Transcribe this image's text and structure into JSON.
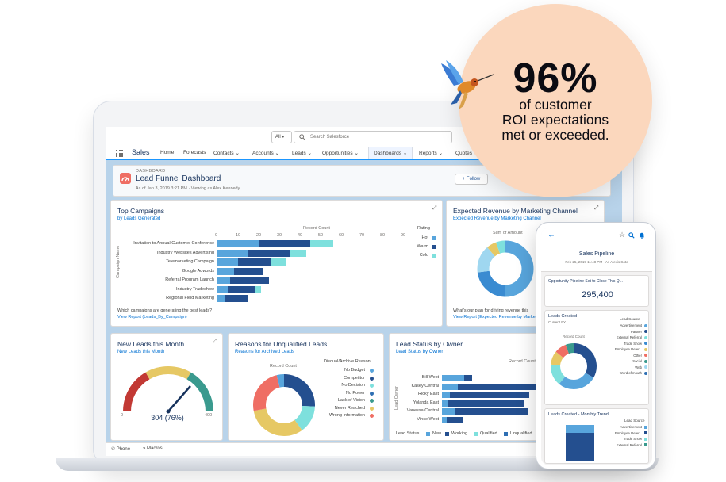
{
  "colors": {
    "cold": "#7ee0dd",
    "warm": "#244f8f",
    "hot": "#58a5dc",
    "accent": "#0070d2",
    "new": "#58a5dc",
    "working": "#244f8f",
    "qualified": "#7ee0dd",
    "unqualified": "#2f6fb3",
    "gaugeRed": "#c23934",
    "gaugeYellow": "#e6c864",
    "gaugeTeal": "#3a9a8e"
  },
  "topbar": {
    "scope": "All",
    "search_placeholder": "Search Salesforce"
  },
  "nav": {
    "app": "Sales",
    "items": [
      "Home",
      "Forecasts",
      "Contacts",
      "Accounts",
      "Leads",
      "Opportunities",
      "Dashboards",
      "Reports",
      "Quotes"
    ],
    "active": "Dashboards"
  },
  "header": {
    "crumb": "DASHBOARD",
    "title": "Lead Funnel Dashboard",
    "subtitle": "As of Jan 3, 2019 3:21 PM · Viewing as Alex Kennedy",
    "follow": "+ Follow"
  },
  "campaigns": {
    "title": "Top Campaigns",
    "subtitle": "by Leads Generated",
    "axis_title": "Record Count",
    "y_axis": "Campaign Name",
    "legend_title": "Rating",
    "legend": [
      "Hot",
      "Warm",
      "Cold"
    ],
    "ticks": [
      "0",
      "10",
      "20",
      "30",
      "40",
      "50",
      "60",
      "70",
      "80",
      "90"
    ],
    "footer_q": "Which campaigns are generating the best leads?",
    "footer_link": "View Report (Leads_By_Campaign)"
  },
  "revenue": {
    "title": "Expected Revenue by Marketing Channel",
    "subtitle": "Expected Revenue by Marketing Channel",
    "center": "Sum of Amount",
    "footer_q": "What's our plan for driving revenue this",
    "footer_link": "View Report (Expected Revenue by Marke"
  },
  "newleads": {
    "title": "New Leads this Month",
    "subtitle": "New Leads this Month",
    "value": "304 (76%)",
    "min": "0",
    "max": "400"
  },
  "reasons": {
    "title": "Reasons for Unqualified Leads",
    "subtitle": "Reasons for Archived Leads",
    "center": "Record Count",
    "legend_title": "Disqual/Archive Reason",
    "legend": [
      "No Budget",
      "Competitor",
      "No Decision",
      "No Power",
      "Lack of Vision",
      "Never Reached",
      "Wrong Information"
    ]
  },
  "status": {
    "title": "Lead Status by Owner",
    "subtitle": "Lead Status by Owner",
    "axis_title": "Record Count",
    "y_axis": "Lead Owner",
    "owners": [
      "Bill West",
      "Kasey Central",
      "Ricky East",
      "Yolanda East",
      "Vanessa Central",
      "Vince West"
    ],
    "legend_title": "Lead Status",
    "legend": [
      "New",
      "Working",
      "Qualified",
      "Unqualified"
    ]
  },
  "utility": {
    "phone": "Phone",
    "macros": "Macros"
  },
  "badge": {
    "percent": "96%",
    "line1": "of customer",
    "line2": "ROI expectations",
    "line3": "met or exceeded."
  },
  "phone": {
    "title": "Sales Pipeline",
    "meta": "Feb 25, 2019 11:48 PM · As Alexis Soto",
    "pipeline_title": "Opportunity Pipeline Set to Close This Q...",
    "pipeline_value": "295,400",
    "leads_title": "Leads Created",
    "leads_sub": "Current FY",
    "leads_center": "Record Count",
    "source_title": "Lead Source",
    "sources": [
      "Advertisement",
      "Partner",
      "External Referral",
      "Trade Show",
      "Employee Refer...",
      "Other",
      "Social",
      "Web",
      "Word of mouth"
    ],
    "monthly_title": "Leads Created - Monthly Trend",
    "monthly_sources": [
      "Advertisement",
      "Employee Refer...",
      "Trade Show",
      "External Referral"
    ]
  },
  "chart_data": [
    {
      "type": "bar",
      "title": "Top Campaigns",
      "subtitle": "by Leads Generated",
      "xlabel": "Record Count",
      "ylabel": "Campaign Name",
      "categories": [
        "Invitation to Annual Customer Conference",
        "Industry Websites Advertising",
        "Telemarketing Campaign",
        "Google Adwords",
        "Referral Program Launch",
        "Industry Tradeshow",
        "Regional Field Marketing"
      ],
      "series": [
        {
          "name": "Hot",
          "values": [
            20,
            15,
            10,
            8,
            6,
            5,
            4
          ]
        },
        {
          "name": "Warm",
          "values": [
            25,
            20,
            16,
            14,
            19,
            13,
            11
          ]
        },
        {
          "name": "Cold",
          "values": [
            11,
            8,
            7,
            0,
            0,
            3,
            0
          ]
        }
      ],
      "xlim": [
        0,
        90
      ]
    },
    {
      "type": "bar",
      "title": "Lead Status by Owner",
      "subtitle": "Lead Status by Owner",
      "xlabel": "Record Count",
      "ylabel": "Lead Owner",
      "categories": [
        "Bill West",
        "Kasey Central",
        "Ricky East",
        "Yolanda East",
        "Vanessa Central",
        "Vince West"
      ],
      "series": [
        {
          "name": "New",
          "values": [
            14,
            10,
            5,
            4,
            8,
            3
          ]
        },
        {
          "name": "Working",
          "values": [
            5,
            55,
            50,
            48,
            46,
            10
          ]
        },
        {
          "name": "Qualified",
          "values": [
            0,
            0,
            0,
            0,
            0,
            0
          ]
        },
        {
          "name": "Unqualified",
          "values": [
            0,
            0,
            0,
            0,
            0,
            0
          ]
        }
      ]
    }
  ]
}
